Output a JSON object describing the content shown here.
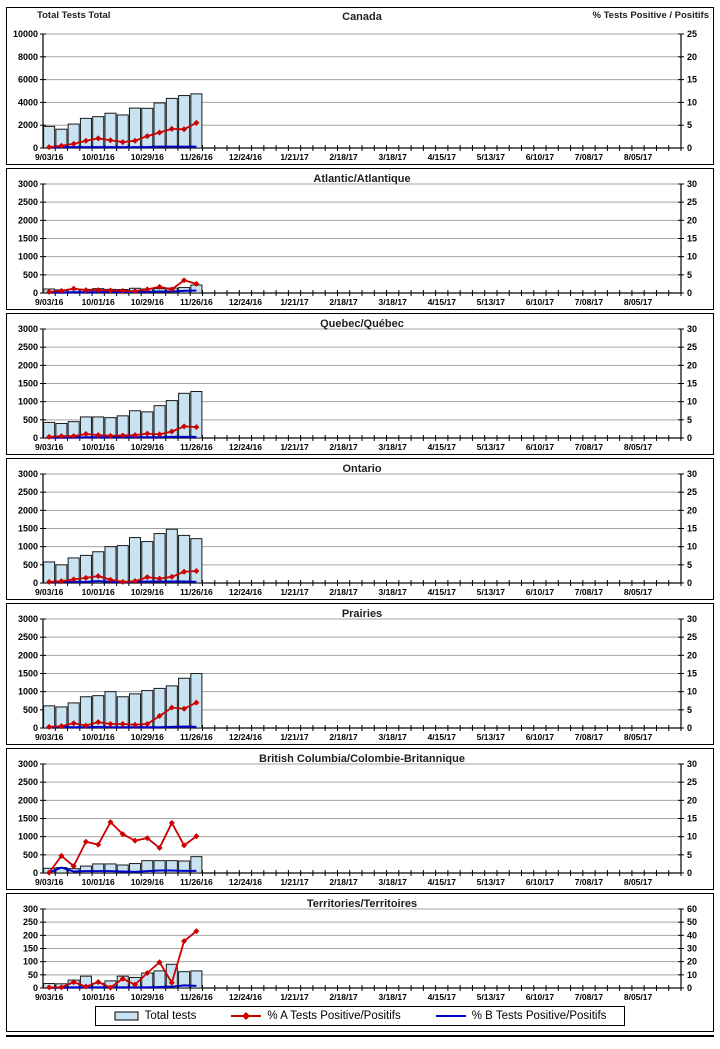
{
  "colors": {
    "bar_fill": "#c9e3f2",
    "bar_stroke": "#1a1a1a",
    "line_a": "#cc0000",
    "line_b": "#0000cc",
    "grid": "#a3a3a3"
  },
  "x_axis": {
    "weeks_total": 52,
    "label_every_n_weeks": 4,
    "tick_labels": [
      "9/03/16",
      "10/01/16",
      "10/29/16",
      "11/26/16",
      "12/24/16",
      "1/21/17",
      "2/18/17",
      "3/18/17",
      "4/15/17",
      "5/13/17",
      "6/10/17",
      "7/08/17",
      "8/05/17"
    ]
  },
  "legend": {
    "total_tests": "Total tests",
    "pct_a": "% A Tests Positive/Positifs",
    "pct_b": "% B Tests Positive/Positifs"
  },
  "chart_data": [
    {
      "type": "bar+line",
      "title": "Canada",
      "left_axis_title": "Total Tests Total",
      "right_axis_title": "% Tests Positive / Positifs",
      "left_axis": {
        "min": 0,
        "max": 10000,
        "step": 2000
      },
      "right_axis": {
        "min": 0,
        "max": 25,
        "step": 5
      },
      "total_tests": [
        1900,
        1650,
        2100,
        2600,
        2750,
        3050,
        2900,
        3500,
        3480,
        3950,
        4350,
        4600,
        4750
      ],
      "pct_a": [
        0.2,
        0.5,
        0.9,
        1.6,
        2.1,
        1.7,
        1.3,
        1.6,
        2.6,
        3.4,
        4.2,
        4.1,
        5.5
      ],
      "pct_b": [
        0.1,
        0.2,
        0.2,
        0.2,
        0.2,
        0.2,
        0.2,
        0.2,
        0.2,
        0.3,
        0.3,
        0.3,
        0.3
      ]
    },
    {
      "type": "bar+line",
      "title": "Atlantic/Atlantique",
      "left_axis": {
        "min": 0,
        "max": 3000,
        "step": 500
      },
      "right_axis": {
        "min": 0,
        "max": 30,
        "step": 5
      },
      "total_tests": [
        110,
        85,
        95,
        100,
        120,
        100,
        95,
        130,
        110,
        120,
        135,
        150,
        220
      ],
      "pct_a": [
        0.3,
        0.6,
        1.2,
        0.8,
        0.8,
        0.7,
        0.6,
        0.5,
        1.0,
        1.7,
        1.0,
        3.5,
        2.5
      ],
      "pct_b": [
        0.1,
        0.1,
        0.2,
        0.2,
        0.2,
        0.3,
        0.2,
        0.3,
        0.3,
        0.4,
        0.4,
        0.6,
        0.7
      ]
    },
    {
      "type": "bar+line",
      "title": "Quebec/Québec",
      "left_axis": {
        "min": 0,
        "max": 3000,
        "step": 500
      },
      "right_axis": {
        "min": 0,
        "max": 30,
        "step": 5
      },
      "total_tests": [
        430,
        400,
        450,
        580,
        580,
        560,
        610,
        750,
        720,
        890,
        1030,
        1230,
        1280
      ],
      "pct_a": [
        0.3,
        0.5,
        0.5,
        1.1,
        0.8,
        0.6,
        0.7,
        0.8,
        1.2,
        1.0,
        1.8,
        3.2,
        3.0
      ],
      "pct_b": [
        0.1,
        0.1,
        0.1,
        0.2,
        0.2,
        0.2,
        0.2,
        0.2,
        0.2,
        0.2,
        0.3,
        0.3,
        0.3
      ]
    },
    {
      "type": "bar+line",
      "title": "Ontario",
      "left_axis": {
        "min": 0,
        "max": 3000,
        "step": 500
      },
      "right_axis": {
        "min": 0,
        "max": 30,
        "step": 5
      },
      "total_tests": [
        580,
        500,
        690,
        760,
        860,
        1000,
        1030,
        1250,
        1140,
        1360,
        1480,
        1310,
        1220
      ],
      "pct_a": [
        0.3,
        0.5,
        1.0,
        1.4,
        1.9,
        0.9,
        0.3,
        0.5,
        1.6,
        1.2,
        1.7,
        3.1,
        3.3
      ],
      "pct_b": [
        0.2,
        0.4,
        0.3,
        0.3,
        0.5,
        0.3,
        0.2,
        0.3,
        0.4,
        0.4,
        0.4,
        0.4,
        0.3
      ]
    },
    {
      "type": "bar+line",
      "title": "Prairies",
      "left_axis": {
        "min": 0,
        "max": 3000,
        "step": 500
      },
      "right_axis": {
        "min": 0,
        "max": 30,
        "step": 5
      },
      "total_tests": [
        610,
        580,
        690,
        860,
        890,
        1000,
        860,
        940,
        1030,
        1090,
        1160,
        1370,
        1500
      ],
      "pct_a": [
        0.3,
        0.5,
        1.3,
        0.7,
        1.6,
        1.1,
        1.1,
        0.9,
        1.1,
        3.3,
        5.6,
        5.3,
        7.0
      ],
      "pct_b": [
        0.1,
        0.3,
        0.2,
        0.2,
        0.3,
        0.2,
        0.2,
        0.2,
        0.2,
        0.2,
        0.3,
        0.4,
        0.3
      ]
    },
    {
      "type": "bar+line",
      "title": "British Columbia/Colombie-Britannique",
      "left_axis": {
        "min": 0,
        "max": 3000,
        "step": 500
      },
      "right_axis": {
        "min": 0,
        "max": 30,
        "step": 5
      },
      "total_tests": [
        130,
        150,
        120,
        190,
        250,
        250,
        220,
        260,
        340,
        340,
        340,
        330,
        450
      ],
      "pct_a": [
        0.1,
        4.7,
        1.9,
        8.6,
        7.8,
        14.0,
        10.7,
        8.9,
        9.6,
        6.9,
        13.8,
        7.6,
        10.1
      ],
      "pct_b": [
        0.1,
        1.5,
        0.4,
        0.5,
        0.5,
        0.5,
        0.4,
        0.3,
        0.5,
        0.7,
        0.7,
        0.6,
        0.6
      ]
    },
    {
      "type": "bar+line",
      "title": "Territories/Territoires",
      "left_axis": {
        "min": 0,
        "max": 300,
        "step": 50
      },
      "right_axis": {
        "min": 0,
        "max": 60,
        "step": 10
      },
      "total_tests": [
        17,
        16,
        30,
        45,
        18,
        27,
        45,
        40,
        57,
        65,
        90,
        62,
        65
      ],
      "pct_a": [
        0.5,
        0.5,
        4.5,
        1.0,
        4.6,
        0.3,
        7.0,
        2.6,
        11.4,
        19.6,
        4.0,
        35.6,
        43.2
      ],
      "pct_b": [
        0.2,
        0.2,
        0.5,
        0.5,
        0.5,
        0.5,
        0.5,
        0.5,
        0.5,
        0.8,
        1.0,
        2.0,
        1.6
      ]
    }
  ]
}
